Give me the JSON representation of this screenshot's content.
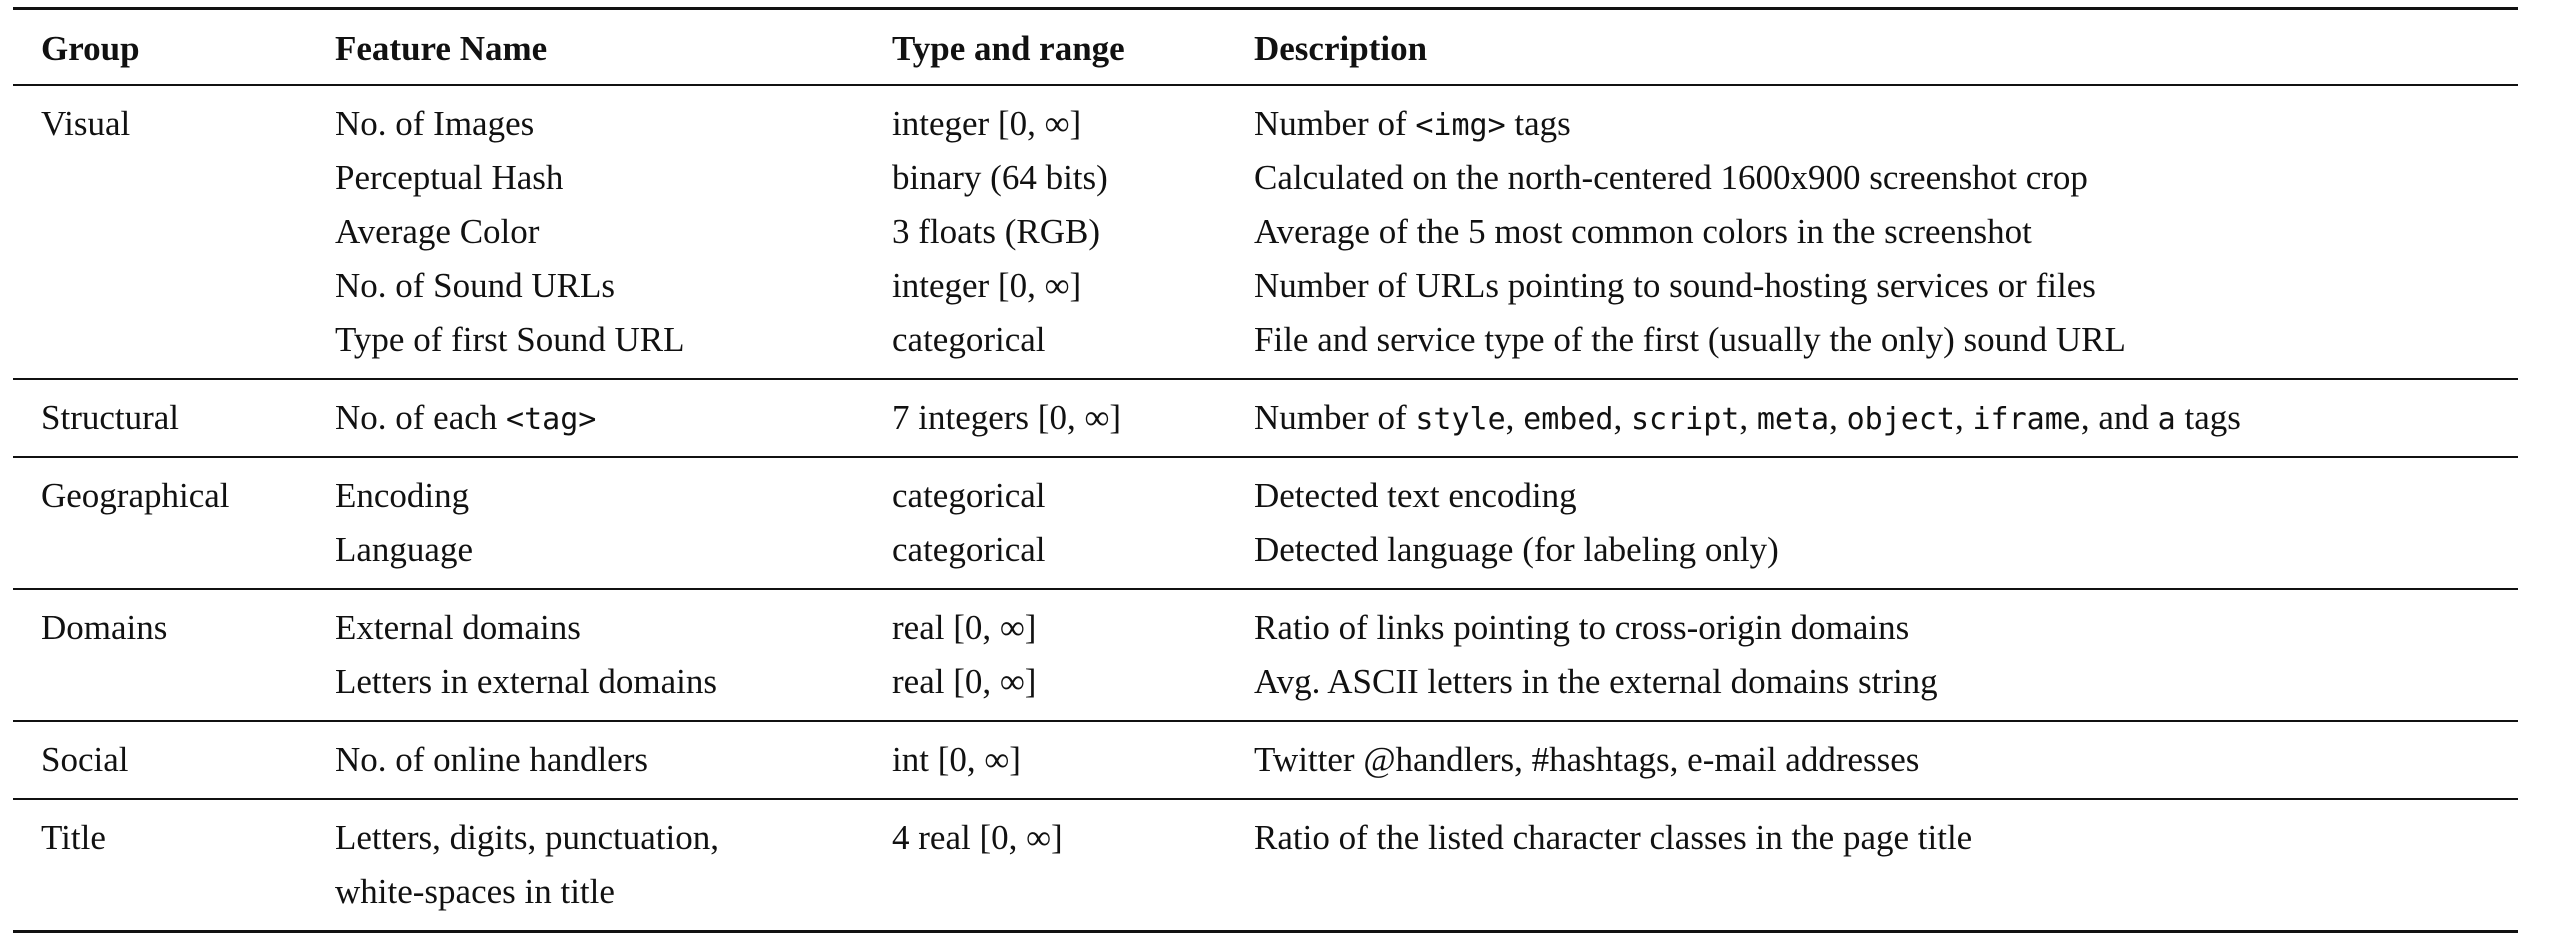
{
  "table": {
    "headers": [
      "Group",
      "Feature Name",
      "Type and range",
      "Description"
    ],
    "groups": [
      {
        "name": "Visual",
        "rows": [
          {
            "feature": [
              {
                "t": "No. of Images"
              }
            ],
            "type": "integer [0, ∞]",
            "description": [
              {
                "t": "Number of "
              },
              {
                "t": "<img>",
                "code": true
              },
              {
                "t": " tags"
              }
            ]
          },
          {
            "feature": [
              {
                "t": "Perceptual Hash"
              }
            ],
            "type": "binary (64 bits)",
            "description": [
              {
                "t": "Calculated on the north-centered 1600x900 screenshot crop"
              }
            ]
          },
          {
            "feature": [
              {
                "t": "Average Color"
              }
            ],
            "type": "3 floats (RGB)",
            "description": [
              {
                "t": "Average of the 5 most common colors in the screenshot"
              }
            ]
          },
          {
            "feature": [
              {
                "t": "No. of Sound URLs"
              }
            ],
            "type": "integer [0, ∞]",
            "description": [
              {
                "t": "Number of URLs pointing to sound-hosting services or files"
              }
            ]
          },
          {
            "feature": [
              {
                "t": "Type of first Sound URL"
              }
            ],
            "type": "categorical",
            "description": [
              {
                "t": "File and service type of the first (usually the only) sound URL"
              }
            ]
          }
        ]
      },
      {
        "name": "Structural",
        "rows": [
          {
            "feature": [
              {
                "t": "No. of each "
              },
              {
                "t": "<tag>",
                "code": true
              }
            ],
            "type": "7 integers [0, ∞]",
            "description": [
              {
                "t": "Number of "
              },
              {
                "t": "style",
                "code": true
              },
              {
                "t": ", "
              },
              {
                "t": "embed",
                "code": true
              },
              {
                "t": ", "
              },
              {
                "t": "script",
                "code": true
              },
              {
                "t": ", "
              },
              {
                "t": "meta",
                "code": true
              },
              {
                "t": ", "
              },
              {
                "t": "object",
                "code": true
              },
              {
                "t": ", "
              },
              {
                "t": "iframe",
                "code": true
              },
              {
                "t": ", and "
              },
              {
                "t": "a",
                "code": true
              },
              {
                "t": " tags"
              }
            ]
          }
        ]
      },
      {
        "name": "Geographical",
        "rows": [
          {
            "feature": [
              {
                "t": "Encoding"
              }
            ],
            "type": "categorical",
            "description": [
              {
                "t": "Detected text encoding"
              }
            ]
          },
          {
            "feature": [
              {
                "t": "Language"
              }
            ],
            "type": "categorical",
            "description": [
              {
                "t": "Detected language (for labeling only)"
              }
            ]
          }
        ]
      },
      {
        "name": "Domains",
        "rows": [
          {
            "feature": [
              {
                "t": "External domains"
              }
            ],
            "type": "real [0, ∞]",
            "description": [
              {
                "t": "Ratio of links pointing to cross-origin domains"
              }
            ]
          },
          {
            "feature": [
              {
                "t": "Letters in external domains"
              }
            ],
            "type": "real [0, ∞]",
            "description": [
              {
                "t": "Avg. ASCII letters in the external domains string"
              }
            ]
          }
        ]
      },
      {
        "name": "Social",
        "rows": [
          {
            "feature": [
              {
                "t": "No. of online handlers"
              }
            ],
            "type": "int [0, ∞]",
            "description": [
              {
                "t": "Twitter @handlers, #hashtags, e-mail addresses"
              }
            ]
          }
        ]
      },
      {
        "name": "Title",
        "rows": [
          {
            "feature": [
              {
                "t": "Letters, digits, punctuation,"
              }
            ],
            "type": "4 real [0, ∞]",
            "description": [
              {
                "t": "Ratio of the listed character classes in the page title"
              }
            ]
          },
          {
            "feature": [
              {
                "t": "white-spaces in title"
              }
            ],
            "type": "",
            "description": []
          }
        ]
      }
    ]
  }
}
